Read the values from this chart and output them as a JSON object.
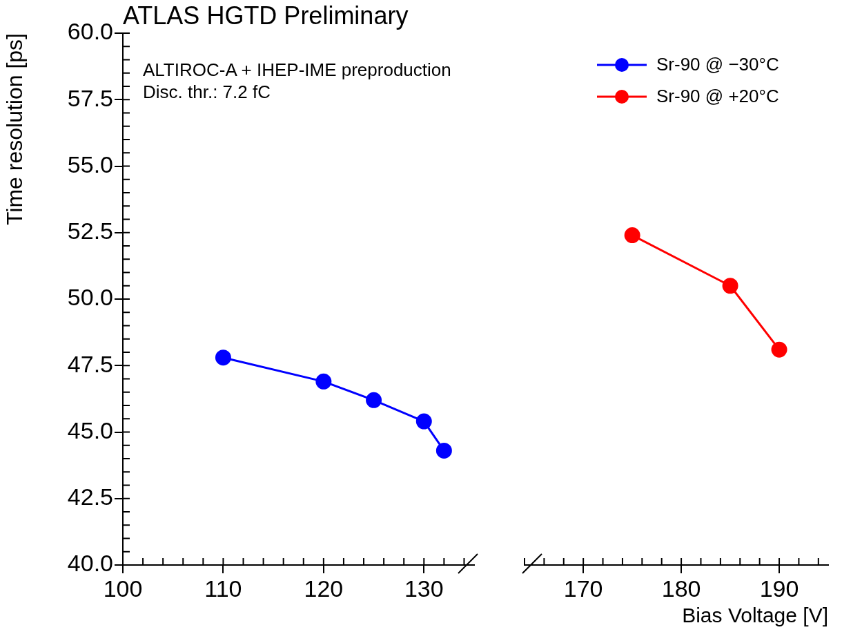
{
  "chart_data": [
    {
      "type": "line",
      "title": "ATLAS HGTD Preliminary",
      "ylabel": "Time resolution [ps]",
      "annotations": [
        "ALTIROC-A + IHEP-IME preproduction",
        "Disc. thr.: 7.2 fC"
      ],
      "marker": "circle",
      "line_style": "solid",
      "legend": "top right",
      "xlim": [
        100,
        135
      ],
      "xticks": [
        100,
        110,
        120,
        130
      ],
      "ylim": [
        40,
        60
      ],
      "yticks": [
        {
          "value": 40,
          "label": "40.0"
        },
        {
          "value": 42.5,
          "label": "42.5"
        },
        {
          "value": 45,
          "label": "45.0"
        },
        {
          "value": 47.5,
          "label": "47.5"
        },
        {
          "value": 50,
          "label": "50.0"
        },
        {
          "value": 52.5,
          "label": "52.5"
        },
        {
          "value": 55,
          "label": "55.0"
        },
        {
          "value": 57.5,
          "label": "57.5"
        },
        {
          "value": 60,
          "label": "60.0"
        }
      ],
      "series": [
        {
          "name": "Sr-90 @ −30°C",
          "color": "#0000ff",
          "x": [
            110,
            120,
            125,
            130,
            132
          ],
          "values": [
            47.8,
            46.9,
            46.2,
            45.4,
            44.3
          ]
        }
      ]
    },
    {
      "type": "line",
      "xlabel": "Bias Voltage [V]",
      "marker": "circle",
      "line_style": "solid",
      "legend": "top right",
      "tick_labels": "x",
      "xlim": [
        164,
        195
      ],
      "xticks": [
        170,
        180,
        190
      ],
      "ylim": [
        40,
        60
      ],
      "series": [
        {
          "name": "Sr-90 @ +20°C",
          "color": "#ff0000",
          "x": [
            175,
            185,
            190
          ],
          "values": [
            52.4,
            50.5,
            48.1
          ]
        }
      ]
    }
  ]
}
